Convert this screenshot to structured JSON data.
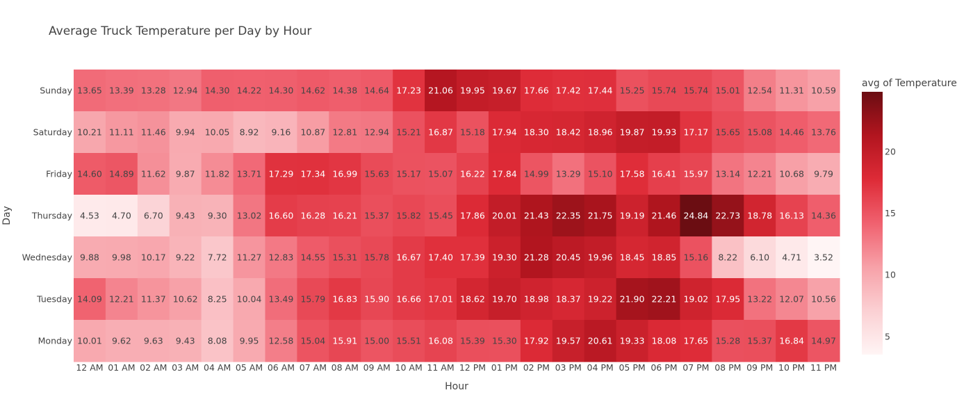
{
  "chart_data": {
    "type": "heatmap",
    "title": "Average Truck Temperature per Day by Hour",
    "xlabel": "Hour",
    "ylabel": "Day",
    "x": [
      "12 AM",
      "01 AM",
      "02 AM",
      "03 AM",
      "04 AM",
      "05 AM",
      "06 AM",
      "07 AM",
      "08 AM",
      "09 AM",
      "10 AM",
      "11 AM",
      "12 PM",
      "01 PM",
      "02 PM",
      "03 PM",
      "04 PM",
      "05 PM",
      "06 PM",
      "07 PM",
      "08 PM",
      "09 PM",
      "10 PM",
      "11 PM"
    ],
    "y": [
      "Sunday",
      "Saturday",
      "Friday",
      "Thursday",
      "Wednesday",
      "Tuesday",
      "Monday"
    ],
    "z": [
      [
        13.65,
        13.39,
        13.28,
        12.94,
        14.3,
        14.22,
        14.3,
        14.62,
        14.38,
        14.64,
        17.23,
        21.06,
        19.95,
        19.67,
        17.66,
        17.42,
        17.44,
        15.25,
        15.74,
        15.74,
        15.01,
        12.54,
        11.31,
        10.59
      ],
      [
        10.21,
        11.11,
        11.46,
        9.94,
        10.05,
        8.92,
        9.16,
        10.87,
        12.81,
        12.94,
        15.21,
        16.87,
        15.18,
        17.94,
        18.3,
        18.42,
        18.96,
        19.87,
        19.93,
        17.17,
        15.65,
        15.08,
        14.46,
        13.76
      ],
      [
        14.6,
        14.89,
        11.62,
        9.87,
        11.82,
        13.71,
        17.29,
        17.34,
        16.99,
        15.63,
        15.17,
        15.07,
        16.22,
        17.84,
        14.99,
        13.29,
        15.1,
        17.58,
        16.41,
        15.97,
        13.14,
        12.21,
        10.68,
        9.79
      ],
      [
        4.53,
        4.7,
        6.7,
        9.43,
        9.3,
        13.02,
        16.6,
        16.28,
        16.21,
        15.37,
        15.82,
        15.45,
        17.86,
        20.01,
        21.43,
        22.35,
        21.75,
        19.19,
        21.46,
        24.84,
        22.73,
        18.78,
        16.13,
        14.36
      ],
      [
        9.88,
        9.98,
        10.17,
        9.22,
        7.72,
        11.27,
        12.83,
        14.55,
        15.31,
        15.78,
        16.67,
        17.4,
        17.39,
        19.3,
        21.28,
        20.45,
        19.96,
        18.45,
        18.85,
        15.16,
        8.22,
        6.1,
        4.71,
        3.52
      ],
      [
        14.09,
        12.21,
        11.37,
        10.62,
        8.25,
        10.04,
        13.49,
        15.79,
        16.83,
        15.9,
        16.66,
        17.01,
        18.62,
        19.7,
        18.98,
        18.37,
        19.22,
        21.9,
        22.21,
        19.02,
        17.95,
        13.22,
        12.07,
        10.56
      ],
      [
        10.01,
        9.62,
        9.63,
        9.43,
        8.08,
        9.95,
        12.58,
        15.04,
        15.91,
        15.0,
        15.51,
        16.08,
        15.39,
        15.3,
        17.92,
        19.57,
        20.61,
        19.33,
        18.08,
        17.65,
        15.28,
        15.37,
        16.84,
        14.97
      ]
    ],
    "zmin": 3.52,
    "zmax": 24.84,
    "colorscale": [
      "#fff5f5",
      "#fbd0d3",
      "#f7a1a8",
      "#f0616f",
      "#de2b37",
      "#b2151f",
      "#6b0d12"
    ],
    "colorbar": {
      "title": "avg of Temperature",
      "ticks": [
        5,
        10,
        15,
        20
      ]
    }
  }
}
